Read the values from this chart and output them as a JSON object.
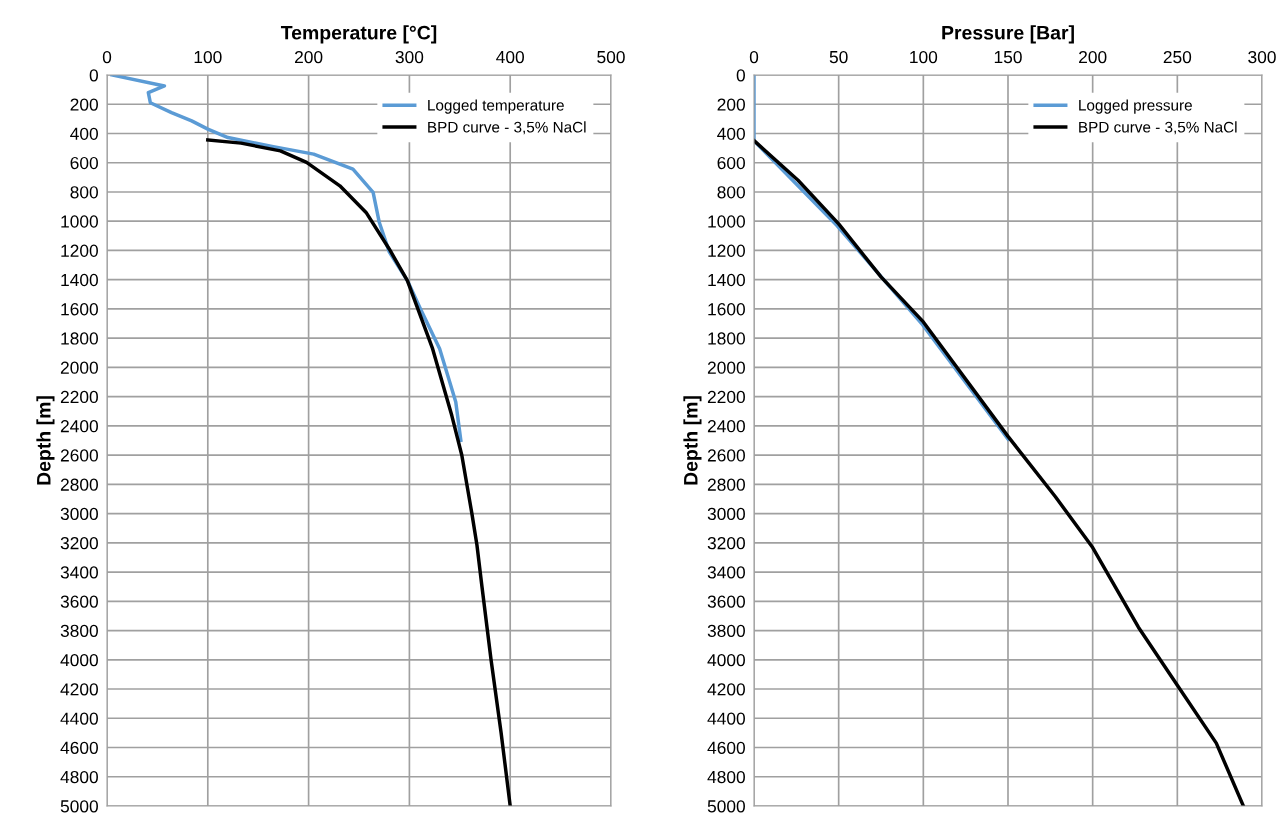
{
  "chart_data": [
    {
      "type": "line",
      "xlabel": "Temperature [°C]",
      "ylabel": "Depth [m]",
      "xlim": [
        0,
        500
      ],
      "xticks": [
        0,
        100,
        200,
        300,
        400,
        500
      ],
      "ylim": [
        5000,
        0
      ],
      "yticks": [
        0,
        200,
        400,
        600,
        800,
        1000,
        1200,
        1400,
        1600,
        1800,
        2000,
        2200,
        2400,
        2600,
        2800,
        3000,
        3200,
        3400,
        3600,
        3800,
        4000,
        4200,
        4400,
        4600,
        4800,
        5000
      ],
      "grid": true,
      "legend": "top right",
      "line_style": "solid",
      "series": [
        {
          "name": "Logged temperature",
          "color": "#5b9bd5",
          "x": [
            5,
            57,
            41,
            43,
            64,
            84,
            100,
            120,
            165,
            205,
            244,
            264,
            270,
            280,
            298,
            311,
            330,
            346,
            351
          ],
          "values": [
            0,
            75,
            120,
            190,
            257,
            314,
            370,
            428,
            490,
            541,
            644,
            803,
            1005,
            1210,
            1406,
            1600,
            1872,
            2236,
            2498
          ]
        },
        {
          "name": "BPD curve - 3,5% NaCl",
          "color": "#000000",
          "x": [
            100,
            133,
            172,
            198,
            231,
            257,
            280,
            298,
            323,
            342,
            352,
            362,
            367,
            372,
            381,
            391,
            400
          ],
          "values": [
            444,
            466,
            519,
            598,
            758,
            940,
            1190,
            1406,
            1872,
            2328,
            2601,
            3000,
            3215,
            3500,
            4000,
            4500,
            5000
          ]
        }
      ]
    },
    {
      "type": "line",
      "xlabel": "Pressure [Bar]",
      "ylabel": "Depth [m]",
      "xlim": [
        0,
        300
      ],
      "xticks": [
        0,
        50,
        100,
        150,
        200,
        250,
        300
      ],
      "ylim": [
        5000,
        0
      ],
      "yticks": [
        0,
        200,
        400,
        600,
        800,
        1000,
        1200,
        1400,
        1600,
        1800,
        2000,
        2200,
        2400,
        2600,
        2800,
        3000,
        3200,
        3400,
        3600,
        3800,
        4000,
        4200,
        4400,
        4600,
        4800,
        5000
      ],
      "grid": true,
      "legend": "top right",
      "line_style": "solid",
      "series": [
        {
          "name": "Logged pressure",
          "color": "#5b9bd5",
          "x": [
            0,
            0,
            49,
            99,
            150
          ],
          "values": [
            0,
            450,
            1030,
            1700,
            2490
          ]
        },
        {
          "name": "BPD curve - 3,5% NaCl",
          "color": "#000000",
          "x": [
            0,
            26,
            50,
            75,
            100,
            150,
            178,
            200,
            227,
            250,
            273,
            289
          ],
          "values": [
            449,
            720,
            1018,
            1381,
            1689,
            2472,
            2885,
            3232,
            3777,
            4174,
            4570,
            5000
          ]
        }
      ]
    }
  ]
}
